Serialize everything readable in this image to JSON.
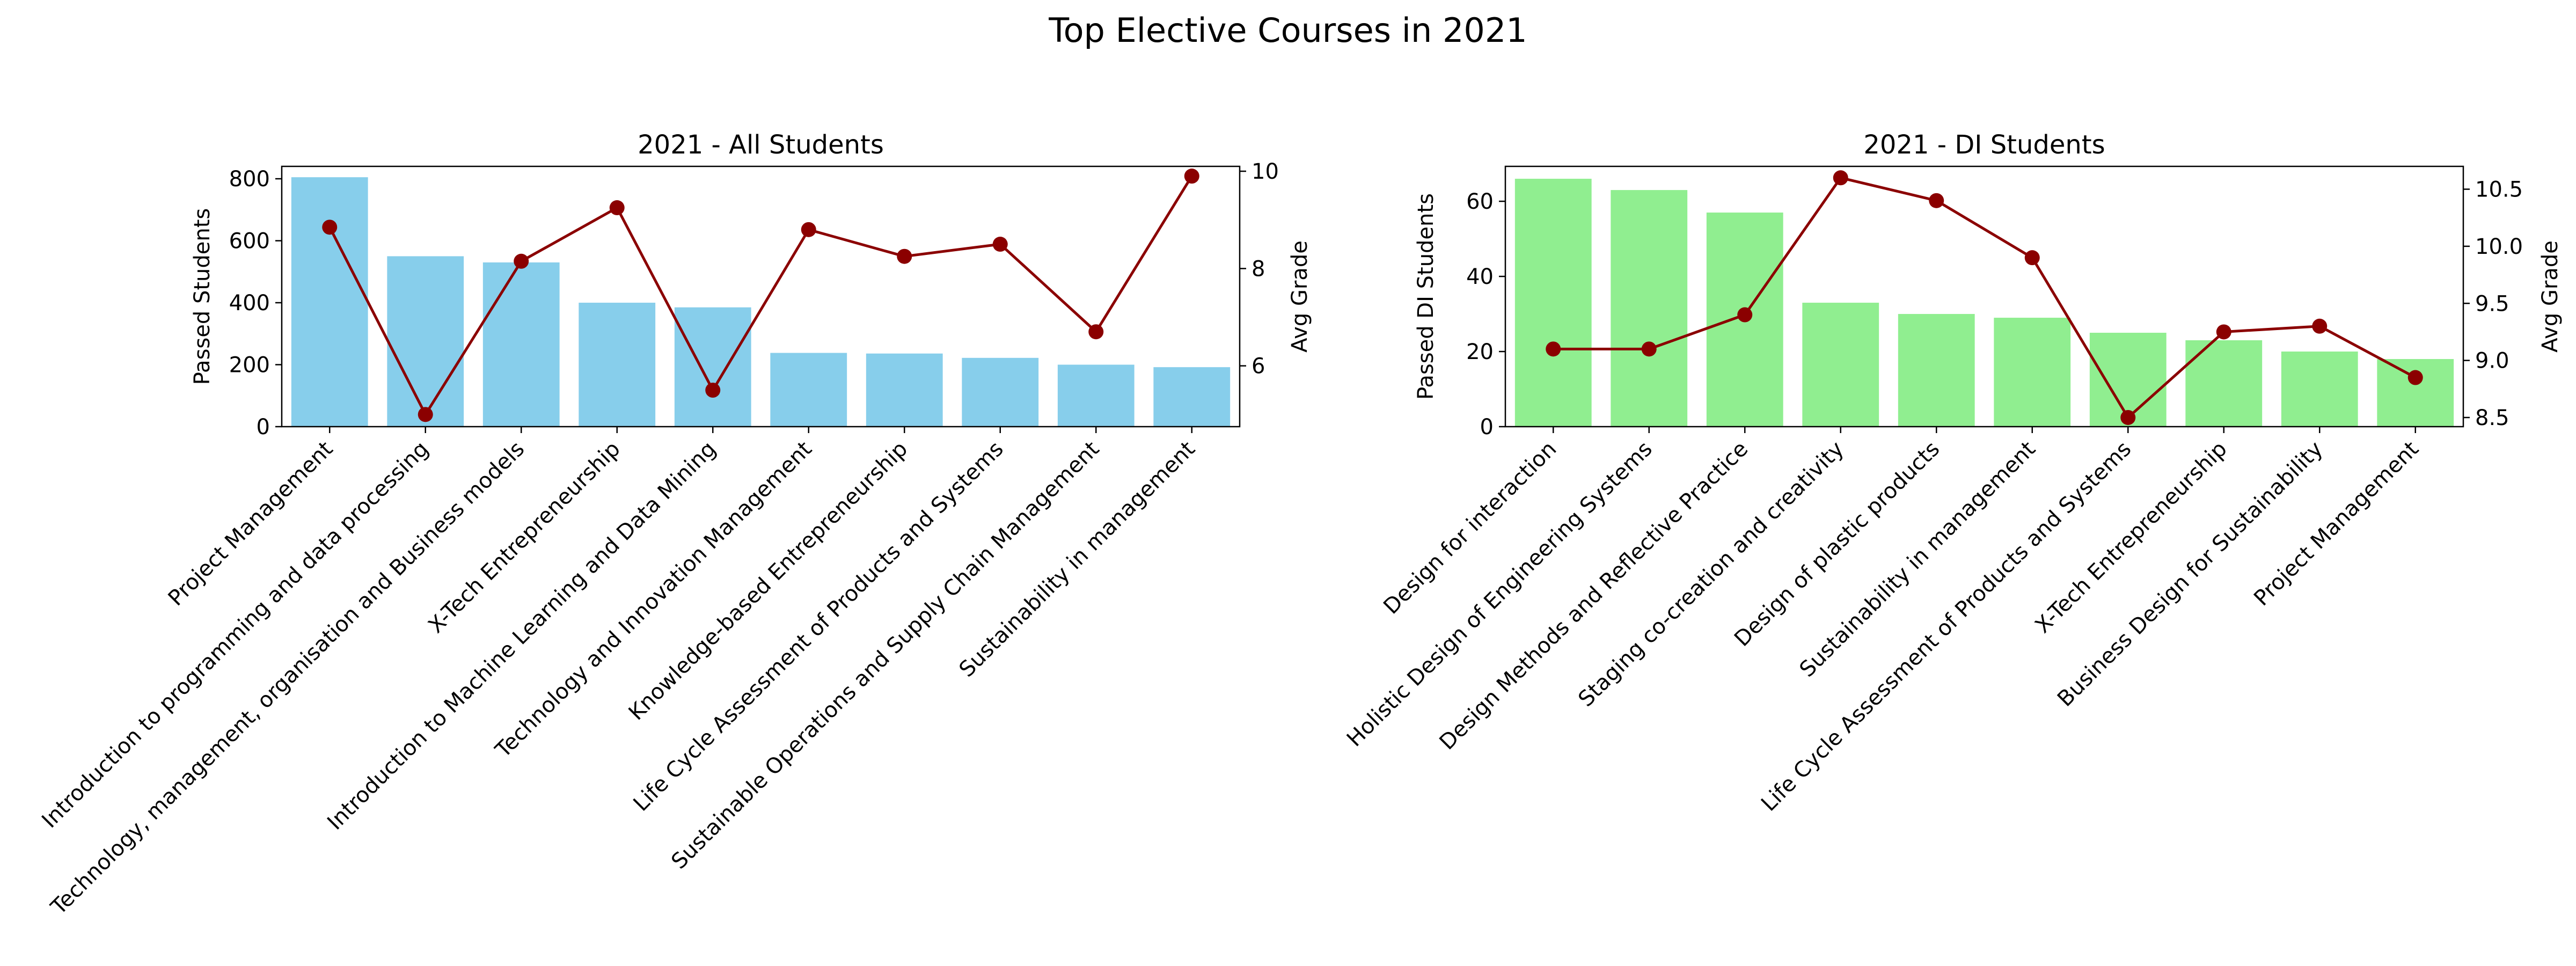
{
  "figure": {
    "title": "Top Elective Courses in 2021"
  },
  "chart_data": [
    {
      "type": "bar",
      "title": "2021 - All Students",
      "xlabel": "",
      "ylabel": "Passed Students",
      "y2label": "Avg Grade",
      "bar_color": "#87ceeb",
      "line_color": "#8b0000",
      "ylim": [
        0,
        840
      ],
      "yticks": [
        0,
        200,
        400,
        600,
        800
      ],
      "y2lim": [
        4.75,
        10.1
      ],
      "y2ticks": [
        6,
        8,
        10
      ],
      "categories": [
        "Project Management",
        "Introduction to programming and data processing",
        "Technology, management, organisation and Business models",
        "X-Tech Entrepreneurship",
        "Introduction to Machine Learning and Data Mining",
        "Technology and Innovation Management",
        "Knowledge-based Entrepreneurship",
        "Life Cycle Assessment of Products and Systems",
        "Sustainable Operations and Supply Chain Management",
        "Sustainability in management"
      ],
      "series": [
        {
          "type": "bar",
          "values": [
            805,
            550,
            530,
            400,
            385,
            238,
            236,
            222,
            200,
            192
          ]
        },
        {
          "type": "line",
          "axis": "right",
          "values": [
            8.85,
            5.0,
            8.15,
            9.25,
            5.5,
            8.8,
            8.25,
            8.5,
            6.7,
            9.9
          ]
        }
      ]
    },
    {
      "type": "bar",
      "title": "2021 - DI Students",
      "xlabel": "",
      "ylabel": "Passed DI Students",
      "y2label": "Avg Grade",
      "bar_color": "#90ee90",
      "line_color": "#8b0000",
      "ylim": [
        0,
        69.3
      ],
      "yticks": [
        0,
        20,
        40,
        60
      ],
      "y2lim": [
        8.42,
        10.7
      ],
      "y2ticks": [
        8.5,
        9.0,
        9.5,
        10.0,
        10.5
      ],
      "y2ticklabels": [
        "8.5",
        "9.0",
        "9.5",
        "10.0",
        "10.5"
      ],
      "categories": [
        "Design for interaction",
        "Holistic Design of Engineering Systems",
        "Design Methods and Reflective Practice",
        "Staging co-creation and creativity",
        "Design of plastic products",
        "Sustainability in management",
        "Life Cycle Assessment of Products and Systems",
        "X-Tech Entrepreneurship",
        "Business Design for Sustainability",
        "Project Management"
      ],
      "series": [
        {
          "type": "bar",
          "values": [
            66,
            63,
            57,
            33,
            30,
            29,
            25,
            23,
            20,
            18
          ]
        },
        {
          "type": "line",
          "axis": "right",
          "values": [
            9.1,
            9.1,
            9.4,
            10.6,
            10.4,
            9.9,
            8.5,
            9.25,
            9.3,
            8.85
          ]
        }
      ]
    }
  ]
}
